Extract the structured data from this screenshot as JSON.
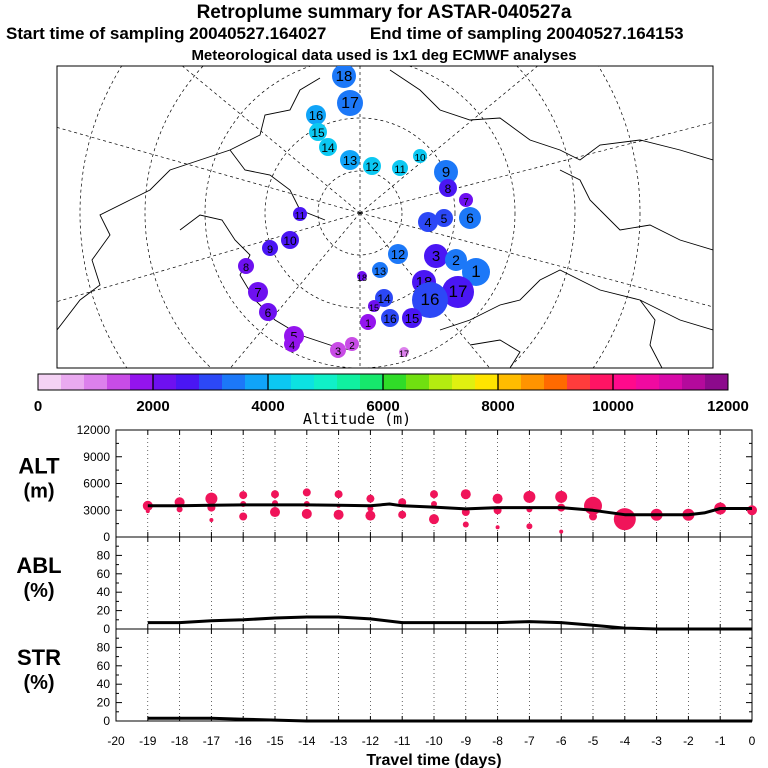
{
  "title": "Retroplume summary for ASTAR-040527a",
  "start_label": "Start time of sampling 20040527.164027",
  "end_label": "End time of sampling 20040527.164153",
  "met_label": "Meteorological data used is 1x1 deg ECMWF analyses",
  "colorbar": {
    "ticks": [
      "0",
      "2000",
      "4000",
      "6000",
      "8000",
      "10000",
      "12000"
    ],
    "label": "Altitude (m)",
    "colors": [
      "#f4d2f4",
      "#eaaaf0",
      "#dc80ec",
      "#c84ce6",
      "#9414ee",
      "#6e10f0",
      "#4a16f4",
      "#2c48f6",
      "#1c78f8",
      "#10a4f8",
      "#0cc8f2",
      "#0ce2e2",
      "#10f0c8",
      "#10f0a0",
      "#16e86c",
      "#30dc28",
      "#70e010",
      "#b4ec10",
      "#e0f010",
      "#ffe400",
      "#ffbc00",
      "#ff9400",
      "#ff6a00",
      "#ff3c3c",
      "#ff1464",
      "#ff0a8c",
      "#f00aa0",
      "#d80aa8",
      "#b40a9c",
      "#8c0a8c"
    ]
  },
  "map": {
    "labels": [
      "18",
      "17",
      "16",
      "15",
      "14",
      "13",
      "12",
      "11",
      "10",
      "9",
      "8",
      "7",
      "6",
      "5",
      "4",
      "3",
      "2",
      "1"
    ]
  },
  "chart_data": [
    {
      "type": "line",
      "name": "ALT",
      "title": "",
      "ylabel_lines": [
        "ALT",
        "(m)"
      ],
      "xlabel": "Travel time (days)",
      "xlim": [
        -20,
        0
      ],
      "ylim": [
        0,
        12000
      ],
      "x_ticks": [
        "-20",
        "-19",
        "-18",
        "-17",
        "-16",
        "-15",
        "-14",
        "-13",
        "-12",
        "-11",
        "-10",
        "-9",
        "-8",
        "-7",
        "-6",
        "-5",
        "-4",
        "-3",
        "-2",
        "-1",
        "0"
      ],
      "y_ticks": [
        "0",
        "3000",
        "6000",
        "9000",
        "12000"
      ],
      "x": [
        -19,
        -18,
        -17,
        -16,
        -15,
        -14,
        -13,
        -12,
        -11.4,
        -11,
        -10,
        -9,
        -8,
        -7,
        -6,
        -5,
        -4,
        -3,
        -2,
        -1.5,
        -1,
        0
      ],
      "values": [
        3500,
        3500,
        3550,
        3600,
        3600,
        3600,
        3550,
        3500,
        3700,
        3500,
        3350,
        3150,
        3300,
        3300,
        3300,
        3000,
        2500,
        2500,
        2500,
        2700,
        3200,
        3200
      ],
      "scatter": [
        {
          "x": -19,
          "y": 3500,
          "r": 5
        },
        {
          "x": -19,
          "y": 2900,
          "r": 2
        },
        {
          "x": -18,
          "y": 3900,
          "r": 5
        },
        {
          "x": -18,
          "y": 3100,
          "r": 3
        },
        {
          "x": -17,
          "y": 4300,
          "r": 6
        },
        {
          "x": -17,
          "y": 3300,
          "r": 4
        },
        {
          "x": -17,
          "y": 1900,
          "r": 2
        },
        {
          "x": -16,
          "y": 4700,
          "r": 4
        },
        {
          "x": -16,
          "y": 3700,
          "r": 3
        },
        {
          "x": -16,
          "y": 2300,
          "r": 4
        },
        {
          "x": -15,
          "y": 4800,
          "r": 4
        },
        {
          "x": -15,
          "y": 3800,
          "r": 3
        },
        {
          "x": -15,
          "y": 2800,
          "r": 5
        },
        {
          "x": -14,
          "y": 5000,
          "r": 4
        },
        {
          "x": -14,
          "y": 3700,
          "r": 3
        },
        {
          "x": -14,
          "y": 2600,
          "r": 5
        },
        {
          "x": -13,
          "y": 4800,
          "r": 4
        },
        {
          "x": -13,
          "y": 3500,
          "r": 2
        },
        {
          "x": -13,
          "y": 2500,
          "r": 5
        },
        {
          "x": -12,
          "y": 4300,
          "r": 4
        },
        {
          "x": -12,
          "y": 3200,
          "r": 3
        },
        {
          "x": -12,
          "y": 2400,
          "r": 5
        },
        {
          "x": -11,
          "y": 3900,
          "r": 4
        },
        {
          "x": -11,
          "y": 2500,
          "r": 4
        },
        {
          "x": -10,
          "y": 4800,
          "r": 4
        },
        {
          "x": -10,
          "y": 3700,
          "r": 3
        },
        {
          "x": -10,
          "y": 2000,
          "r": 5
        },
        {
          "x": -9,
          "y": 4800,
          "r": 5
        },
        {
          "x": -9,
          "y": 2800,
          "r": 4
        },
        {
          "x": -9,
          "y": 1400,
          "r": 3
        },
        {
          "x": -8,
          "y": 4300,
          "r": 5
        },
        {
          "x": -8,
          "y": 3000,
          "r": 4
        },
        {
          "x": -8,
          "y": 1100,
          "r": 2
        },
        {
          "x": -7,
          "y": 4500,
          "r": 6
        },
        {
          "x": -7,
          "y": 3100,
          "r": 3
        },
        {
          "x": -7,
          "y": 1200,
          "r": 3
        },
        {
          "x": -6,
          "y": 4500,
          "r": 6
        },
        {
          "x": -6,
          "y": 3300,
          "r": 4
        },
        {
          "x": -6,
          "y": 600,
          "r": 2
        },
        {
          "x": -5,
          "y": 3500,
          "r": 9
        },
        {
          "x": -5,
          "y": 2300,
          "r": 4
        },
        {
          "x": -4,
          "y": 2000,
          "r": 11
        },
        {
          "x": -3,
          "y": 2500,
          "r": 6
        },
        {
          "x": -2,
          "y": 2500,
          "r": 6
        },
        {
          "x": -1,
          "y": 3200,
          "r": 6
        },
        {
          "x": 0,
          "y": 3000,
          "r": 5
        }
      ]
    },
    {
      "type": "line",
      "name": "ABL",
      "ylabel_lines": [
        "ABL",
        "(%)"
      ],
      "xlim": [
        -20,
        0
      ],
      "ylim": [
        0,
        100
      ],
      "y_ticks": [
        "0",
        "20",
        "40",
        "60",
        "80"
      ],
      "x": [
        -19,
        -18,
        -17,
        -16,
        -15,
        -14,
        -13,
        -12,
        -11,
        -10,
        -9,
        -8,
        -7,
        -6,
        -5,
        -4,
        -3,
        -2,
        -1,
        0
      ],
      "values": [
        7,
        7,
        9,
        10,
        12,
        13,
        13,
        11,
        7,
        7,
        7,
        7,
        8,
        7,
        4,
        1,
        0,
        0,
        0,
        0
      ]
    },
    {
      "type": "line",
      "name": "STR",
      "ylabel_lines": [
        "STR",
        "(%)"
      ],
      "xlim": [
        -20,
        0
      ],
      "ylim": [
        0,
        100
      ],
      "y_ticks": [
        "0",
        "20",
        "40",
        "60",
        "80"
      ],
      "x": [
        -19,
        -18,
        -17,
        -16,
        -15,
        -14,
        -13,
        -12,
        -11,
        -10,
        -9,
        -8,
        -7,
        -6,
        -5,
        -4,
        -3,
        -2,
        -1,
        0
      ],
      "values": [
        3,
        3,
        3,
        2,
        1,
        0,
        0,
        0,
        0,
        0,
        0,
        0,
        0,
        0,
        0,
        0,
        0,
        0,
        0,
        0
      ]
    }
  ]
}
